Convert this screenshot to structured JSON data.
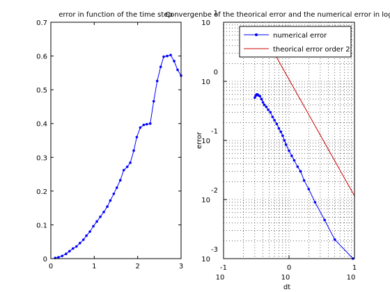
{
  "chart_data": [
    {
      "type": "line",
      "title": "error in function of the time step",
      "xlabel": "",
      "ylabel": "",
      "xlim": [
        0,
        3
      ],
      "ylim": [
        0,
        0.7
      ],
      "xticks": [
        "0",
        "1",
        "2",
        "3"
      ],
      "yticks": [
        "0",
        "0.1",
        "0.2",
        "0.3",
        "0.4",
        "0.5",
        "0.6",
        "0.7"
      ],
      "grid": false,
      "legend": "none",
      "series": [
        {
          "color": "#0000ff",
          "marker": "dot",
          "x": [
            0.1,
            0.175,
            0.26,
            0.35,
            0.43,
            0.51,
            0.59,
            0.67,
            0.75,
            0.82,
            0.9,
            0.98,
            1.06,
            1.14,
            1.22,
            1.3,
            1.37,
            1.45,
            1.52,
            1.6,
            1.68,
            1.76,
            1.83,
            1.91,
            1.98,
            2.06,
            2.14,
            2.21,
            2.29,
            2.37,
            2.45,
            2.53,
            2.6,
            2.68,
            2.76,
            2.84,
            2.92,
            3.0
          ],
          "y": [
            0.002,
            0.004,
            0.008,
            0.014,
            0.022,
            0.03,
            0.036,
            0.046,
            0.056,
            0.068,
            0.08,
            0.096,
            0.11,
            0.124,
            0.138,
            0.154,
            0.172,
            0.192,
            0.21,
            0.232,
            0.262,
            0.272,
            0.284,
            0.32,
            0.36,
            0.388,
            0.396,
            0.398,
            0.4,
            0.466,
            0.526,
            0.568,
            0.598,
            0.6,
            0.603,
            0.585,
            0.559,
            0.542
          ]
        }
      ]
    },
    {
      "type": "line",
      "title": "Convergenbe of the theorical error and the numerical error in loglog",
      "xlabel": "dt",
      "ylabel": "error",
      "xscale": "log",
      "yscale": "log",
      "xlim": [
        0.1,
        10
      ],
      "ylim": [
        0.001,
        10
      ],
      "xticks": [
        {
          "base": "10",
          "exp": "-1"
        },
        {
          "base": "10",
          "exp": "0"
        },
        {
          "base": "10",
          "exp": "1"
        }
      ],
      "yticks": [
        {
          "base": "10",
          "exp": "-3"
        },
        {
          "base": "10",
          "exp": "-2"
        },
        {
          "base": "10",
          "exp": "-1"
        },
        {
          "base": "10",
          "exp": "0"
        },
        {
          "base": "10",
          "exp": "1"
        }
      ],
      "grid": true,
      "legend": "top-right",
      "series": [
        {
          "name": "numerical error",
          "color": "#0000ff",
          "marker": "dot",
          "x": [
            0.3,
            0.31,
            0.32,
            0.33,
            0.34,
            0.36,
            0.38,
            0.4,
            0.42,
            0.45,
            0.48,
            0.52,
            0.56,
            0.6,
            0.65,
            0.7,
            0.75,
            0.8,
            0.85,
            0.9,
            1.0,
            1.1,
            1.2,
            1.35,
            1.5,
            1.7,
            2.0,
            2.5,
            3.5,
            5.0,
            9.5
          ],
          "y": [
            0.53,
            0.57,
            0.6,
            0.6,
            0.58,
            0.56,
            0.5,
            0.44,
            0.4,
            0.37,
            0.33,
            0.3,
            0.25,
            0.22,
            0.19,
            0.16,
            0.14,
            0.12,
            0.1,
            0.085,
            0.067,
            0.055,
            0.046,
            0.036,
            0.03,
            0.021,
            0.015,
            0.009,
            0.0045,
            0.0021,
            0.001
          ]
        },
        {
          "name": "theorical error order 2",
          "color": "#cc0000",
          "marker": "none",
          "x": [
            0.55,
            10
          ],
          "y": [
            3.5,
            0.0115
          ]
        }
      ]
    }
  ]
}
